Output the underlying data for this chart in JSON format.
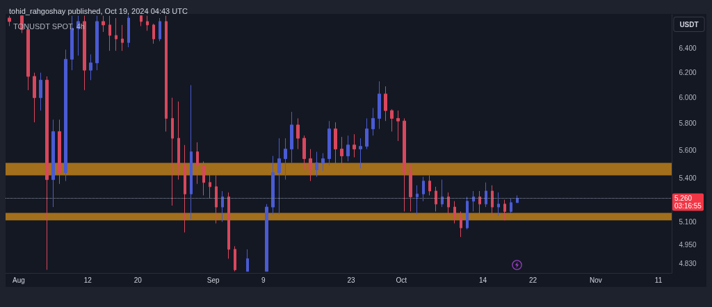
{
  "chart_data": {
    "type": "candlestick",
    "title": "TONUSDT SPOT, 4h",
    "subtitle": "tohid_rahgoshay published, Oct 19, 2024 04:43 UTC",
    "ylabel": "USDT",
    "annotations": [
      "03:16:55"
    ],
    "log": true,
    "xlim": [
      "2024-07-29T21:30",
      "2024-11-13T02:30"
    ],
    "xticks": [
      {
        "value": "2024-08-01",
        "label": "Aug"
      },
      {
        "value": "2024-08-12",
        "label": "12"
      },
      {
        "value": "2024-08-20",
        "label": "20"
      },
      {
        "value": "2024-09-01",
        "label": "Sep"
      },
      {
        "value": "2024-09-09",
        "label": "9"
      },
      {
        "value": "2024-09-23",
        "label": "23"
      },
      {
        "value": "2024-10-01",
        "label": "Oct"
      },
      {
        "value": "2024-10-14",
        "label": "14"
      },
      {
        "value": "2024-10-22",
        "label": "22"
      },
      {
        "value": "2024-11-01",
        "label": "Nov"
      },
      {
        "value": "2024-11-11",
        "label": "11"
      }
    ],
    "ylim": [
      4.77,
      6.69
    ],
    "yticks": [
      {
        "value": 6.4,
        "label": "6.400"
      },
      {
        "value": 6.2,
        "label": "6.200"
      },
      {
        "value": 6.0,
        "label": "6.000"
      },
      {
        "value": 5.8,
        "label": "5.800"
      },
      {
        "value": 5.6,
        "label": "5.600"
      },
      {
        "value": 5.4,
        "label": "5.400"
      },
      {
        "value": 5.1,
        "label": "5.100"
      },
      {
        "value": 4.95,
        "label": "4.950"
      },
      {
        "value": 4.83,
        "label": "4.830"
      }
    ],
    "ref_lines": [
      {
        "axis": "y",
        "value": 5.26,
        "label": "5.260",
        "color": "#8f96aa",
        "line_style": "dotted"
      }
    ],
    "bands": [
      {
        "axis": "y",
        "from": 5.42,
        "to": 5.51,
        "color": "#a26f1c"
      },
      {
        "axis": "y",
        "from": 5.11,
        "to": 5.16,
        "color": "#a26f1c"
      }
    ],
    "x": [
      "2024-07-30T12:00",
      "2024-08-01T12:00",
      "2024-08-02T12:00",
      "2024-08-03T12:00",
      "2024-08-04T12:00",
      "2024-08-05T12:00",
      "2024-08-06T12:00",
      "2024-08-07T12:00",
      "2024-08-08T12:00",
      "2024-08-09T12:00",
      "2024-08-10T12:00",
      "2024-08-11T12:00",
      "2024-08-12T12:00",
      "2024-08-13T12:00",
      "2024-08-14T12:00",
      "2024-08-15T12:00",
      "2024-08-16T12:00",
      "2024-08-17T12:00",
      "2024-08-18T12:00",
      "2024-08-20T12:00",
      "2024-08-21T12:00",
      "2024-08-22T12:00",
      "2024-08-23T12:00",
      "2024-08-24T12:00",
      "2024-08-25T12:00",
      "2024-08-26T12:00",
      "2024-08-27T12:00",
      "2024-08-28T12:00",
      "2024-08-29T12:00",
      "2024-08-30T12:00",
      "2024-08-31T12:00",
      "2024-09-01T12:00",
      "2024-09-02T12:00",
      "2024-09-03T12:00",
      "2024-09-04T12:00",
      "2024-09-06T12:00",
      "2024-09-09T12:00",
      "2024-09-10T12:00",
      "2024-09-11T12:00",
      "2024-09-12T12:00",
      "2024-09-13T12:00",
      "2024-09-14T12:00",
      "2024-09-15T12:00",
      "2024-09-16T12:00",
      "2024-09-17T12:00",
      "2024-09-18T12:00",
      "2024-09-19T12:00",
      "2024-09-20T12:00",
      "2024-09-21T12:00",
      "2024-09-22T12:00",
      "2024-09-23T12:00",
      "2024-09-24T12:00",
      "2024-09-25T12:00",
      "2024-09-26T12:00",
      "2024-09-27T12:00",
      "2024-09-28T12:00",
      "2024-09-29T12:00",
      "2024-09-30T12:00",
      "2024-10-01T12:00",
      "2024-10-02T12:00",
      "2024-10-03T12:00",
      "2024-10-04T12:00",
      "2024-10-05T12:00",
      "2024-10-06T12:00",
      "2024-10-07T12:00",
      "2024-10-08T12:00",
      "2024-10-09T12:00",
      "2024-10-10T12:00",
      "2024-10-11T12:00",
      "2024-10-12T12:00",
      "2024-10-13T12:00",
      "2024-10-14T12:00",
      "2024-10-15T12:00",
      "2024-10-16T12:00",
      "2024-10-17T12:00",
      "2024-10-18T12:00",
      "2024-10-19T12:00"
    ],
    "ohlc": [
      [
        6.66,
        6.68,
        6.59,
        6.63
      ],
      [
        6.68,
        6.68,
        6.53,
        6.56
      ],
      [
        6.56,
        6.57,
        6.06,
        6.17
      ],
      [
        6.17,
        6.2,
        5.81,
        6.0
      ],
      [
        6.0,
        6.2,
        5.9,
        6.14
      ],
      [
        6.14,
        6.17,
        4.79,
        5.39
      ],
      [
        5.39,
        5.83,
        5.2,
        5.74
      ],
      [
        5.74,
        5.83,
        5.36,
        5.44
      ],
      [
        5.44,
        6.39,
        5.38,
        6.31
      ],
      [
        6.31,
        6.68,
        6.22,
        6.57
      ],
      [
        6.57,
        6.68,
        6.34,
        6.63
      ],
      [
        6.63,
        6.68,
        6.06,
        6.22
      ],
      [
        6.22,
        6.35,
        6.14,
        6.28
      ],
      [
        6.28,
        6.68,
        6.22,
        6.63
      ],
      [
        6.63,
        6.68,
        6.54,
        6.6
      ],
      [
        6.6,
        6.68,
        6.38,
        6.51
      ],
      [
        6.51,
        6.66,
        6.38,
        6.48
      ],
      [
        6.48,
        6.6,
        6.38,
        6.45
      ],
      [
        6.45,
        6.68,
        6.41,
        6.66
      ],
      [
        6.68,
        6.68,
        6.59,
        6.63
      ],
      [
        6.63,
        6.68,
        6.55,
        6.6
      ],
      [
        6.6,
        6.61,
        6.44,
        6.48
      ],
      [
        6.48,
        6.66,
        6.46,
        6.63
      ],
      [
        6.63,
        6.68,
        5.74,
        5.84
      ],
      [
        5.84,
        6.0,
        5.21,
        5.69
      ],
      [
        5.69,
        5.97,
        5.39,
        5.49
      ],
      [
        5.49,
        5.64,
        5.03,
        5.29
      ],
      [
        5.29,
        6.1,
        5.12,
        5.59
      ],
      [
        5.59,
        5.66,
        5.36,
        5.49
      ],
      [
        5.49,
        5.52,
        5.28,
        5.37
      ],
      [
        5.37,
        5.45,
        5.26,
        5.34
      ],
      [
        5.34,
        5.42,
        5.09,
        5.2
      ],
      [
        5.2,
        5.31,
        5.1,
        5.27
      ],
      [
        5.27,
        5.3,
        4.86,
        4.92
      ],
      [
        4.92,
        4.94,
        4.78,
        4.79
      ],
      [
        4.78,
        4.92,
        4.78,
        4.86
      ],
      [
        4.78,
        5.22,
        4.78,
        5.2
      ],
      [
        5.2,
        5.56,
        5.15,
        5.44
      ],
      [
        5.44,
        5.69,
        5.15,
        5.54
      ],
      [
        5.54,
        5.69,
        5.39,
        5.61
      ],
      [
        5.61,
        5.89,
        5.51,
        5.79
      ],
      [
        5.79,
        5.84,
        5.61,
        5.69
      ],
      [
        5.69,
        5.71,
        5.46,
        5.54
      ],
      [
        5.54,
        5.61,
        5.38,
        5.46
      ],
      [
        5.46,
        5.59,
        5.41,
        5.51
      ],
      [
        5.51,
        5.58,
        5.45,
        5.54
      ],
      [
        5.54,
        5.82,
        5.49,
        5.76
      ],
      [
        5.76,
        5.81,
        5.46,
        5.61
      ],
      [
        5.61,
        5.7,
        5.45,
        5.56
      ],
      [
        5.56,
        5.71,
        5.52,
        5.64
      ],
      [
        5.64,
        5.72,
        5.55,
        5.61
      ],
      [
        5.61,
        5.69,
        5.47,
        5.63
      ],
      [
        5.63,
        5.84,
        5.61,
        5.76
      ],
      [
        5.76,
        5.92,
        5.71,
        5.84
      ],
      [
        5.84,
        6.13,
        5.76,
        6.03
      ],
      [
        6.03,
        6.09,
        5.82,
        5.9
      ],
      [
        5.9,
        5.91,
        5.74,
        5.84
      ],
      [
        5.84,
        5.9,
        5.67,
        5.82
      ],
      [
        5.82,
        5.84,
        5.17,
        5.44
      ],
      [
        5.44,
        5.5,
        5.17,
        5.27
      ],
      [
        5.27,
        5.35,
        5.15,
        5.29
      ],
      [
        5.29,
        5.41,
        5.24,
        5.38
      ],
      [
        5.38,
        5.42,
        5.28,
        5.31
      ],
      [
        5.31,
        5.34,
        5.17,
        5.22
      ],
      [
        5.22,
        5.39,
        5.2,
        5.27
      ],
      [
        5.27,
        5.3,
        5.15,
        5.2
      ],
      [
        5.2,
        5.24,
        5.09,
        5.13
      ],
      [
        5.13,
        5.17,
        5.0,
        5.06
      ],
      [
        5.06,
        5.27,
        5.05,
        5.24
      ],
      [
        5.24,
        5.31,
        5.17,
        5.27
      ],
      [
        5.27,
        5.31,
        5.15,
        5.22
      ],
      [
        5.22,
        5.37,
        5.2,
        5.31
      ],
      [
        5.31,
        5.35,
        5.14,
        5.2
      ],
      [
        5.2,
        5.3,
        5.14,
        5.22
      ],
      [
        5.22,
        5.25,
        5.11,
        5.17
      ],
      [
        5.17,
        5.26,
        5.16,
        5.23
      ],
      [
        5.23,
        5.28,
        5.23,
        5.26
      ]
    ],
    "colors": [
      "#d9475c",
      "#d9475c",
      "#d9475c",
      "#d9475c",
      "#4a5bd4",
      "#d9475c",
      "#4a5bd4",
      "#d9475c",
      "#4a5bd4",
      "#4a5bd4",
      "#4a5bd4",
      "#d9475c",
      "#4a5bd4",
      "#4a5bd4",
      "#d9475c",
      "#d9475c",
      "#d9475c",
      "#d9475c",
      "#4a5bd4",
      "#d9475c",
      "#d9475c",
      "#d9475c",
      "#4a5bd4",
      "#d9475c",
      "#d9475c",
      "#d9475c",
      "#d9475c",
      "#4a5bd4",
      "#d9475c",
      "#d9475c",
      "#d9475c",
      "#d9475c",
      "#4a5bd4",
      "#d9475c",
      "#d9475c",
      "#4a5bd4",
      "#4a5bd4",
      "#4a5bd4",
      "#4a5bd4",
      "#4a5bd4",
      "#4a5bd4",
      "#d9475c",
      "#d9475c",
      "#d9475c",
      "#4a5bd4",
      "#4a5bd4",
      "#4a5bd4",
      "#d9475c",
      "#d9475c",
      "#4a5bd4",
      "#d9475c",
      "#4a5bd4",
      "#4a5bd4",
      "#4a5bd4",
      "#4a5bd4",
      "#d9475c",
      "#d9475c",
      "#d9475c",
      "#d9475c",
      "#d9475c",
      "#4a5bd4",
      "#4a5bd4",
      "#d9475c",
      "#d9475c",
      "#4a5bd4",
      "#d9475c",
      "#d9475c",
      "#d9475c",
      "#4a5bd4",
      "#4a5bd4",
      "#d9475c",
      "#4a5bd4",
      "#d9475c",
      "#4a5bd4",
      "#d9475c",
      "#4a5bd4",
      "#4a5bd4"
    ]
  }
}
